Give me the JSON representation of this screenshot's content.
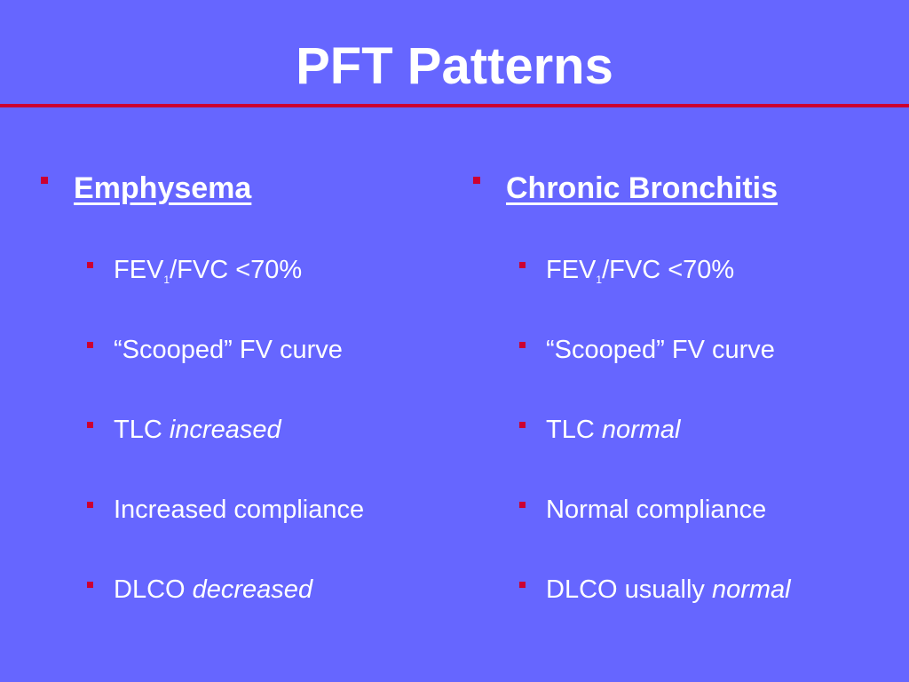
{
  "title": "PFT Patterns",
  "left": {
    "heading": "Emphysema",
    "items": [
      {
        "pre": "FEV",
        "sub": "1",
        "post": "/FVC  <70%"
      },
      {
        "pre": "“Scooped” FV curve"
      },
      {
        "pre": "TLC ",
        "em": "increased"
      },
      {
        "pre": "Increased compliance"
      },
      {
        "pre": "DLCO ",
        "em": "decreased"
      }
    ]
  },
  "right": {
    "heading": "Chronic Bronchitis",
    "items": [
      {
        "pre": "FEV",
        "sub": "1",
        "post": "/FVC <70%"
      },
      {
        "pre": "“Scooped” FV curve"
      },
      {
        "pre": "TLC ",
        "em": "normal"
      },
      {
        "pre": "Normal compliance"
      },
      {
        "pre": "DLCO usually ",
        "em": "normal"
      }
    ]
  },
  "colors": {
    "background": "#6666ff",
    "accent": "#cc0033",
    "text": "#ffffff"
  },
  "icons": {
    "bullet": "square-bullet-icon"
  }
}
